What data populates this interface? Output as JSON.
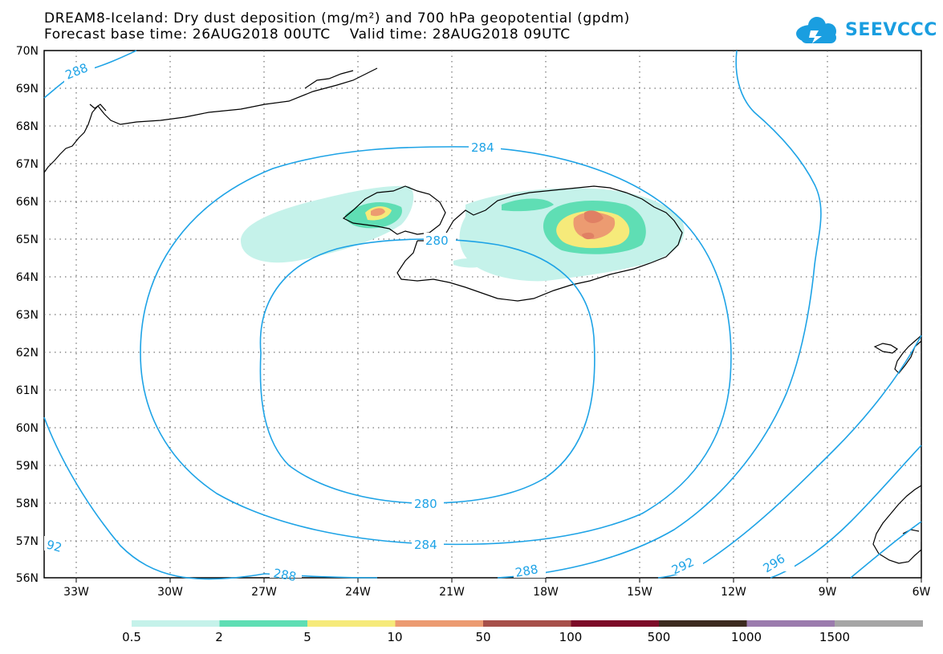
{
  "header": {
    "title_line1": "DREAM8-Iceland: Dry dust deposition (mg/m²) and 700 hPa geopotential (gpdm)",
    "title_line2": "Forecast base time: 26AUG2018 00UTC    Valid time: 28AUG2018 09UTC"
  },
  "logo": {
    "text": "SEEVCCC",
    "color": "#1a9ee0"
  },
  "map": {
    "lat_labels": [
      "70N",
      "69N",
      "68N",
      "67N",
      "66N",
      "65N",
      "64N",
      "63N",
      "62N",
      "61N",
      "60N",
      "59N",
      "58N",
      "57N",
      "56N"
    ],
    "lon_labels": [
      "33W",
      "30W",
      "27W",
      "24W",
      "21W",
      "18W",
      "15W",
      "12W",
      "9W",
      "6W"
    ],
    "contour_labels": [
      "288",
      "284",
      "280",
      "280",
      "284",
      "288",
      "288",
      "292",
      "296",
      "92"
    ],
    "contour_color": "#1ea3e6"
  },
  "legend": {
    "labels": [
      "0.5",
      "2",
      "5",
      "10",
      "50",
      "100",
      "500",
      "1000",
      "1500"
    ],
    "colors": [
      "#c5f2ea",
      "#5fdeb4",
      "#f6ea7a",
      "#ec9b71",
      "#a7504a",
      "#7c0b28",
      "#3c2a1f",
      "#9b7bad",
      "#a6a6a6"
    ]
  }
}
